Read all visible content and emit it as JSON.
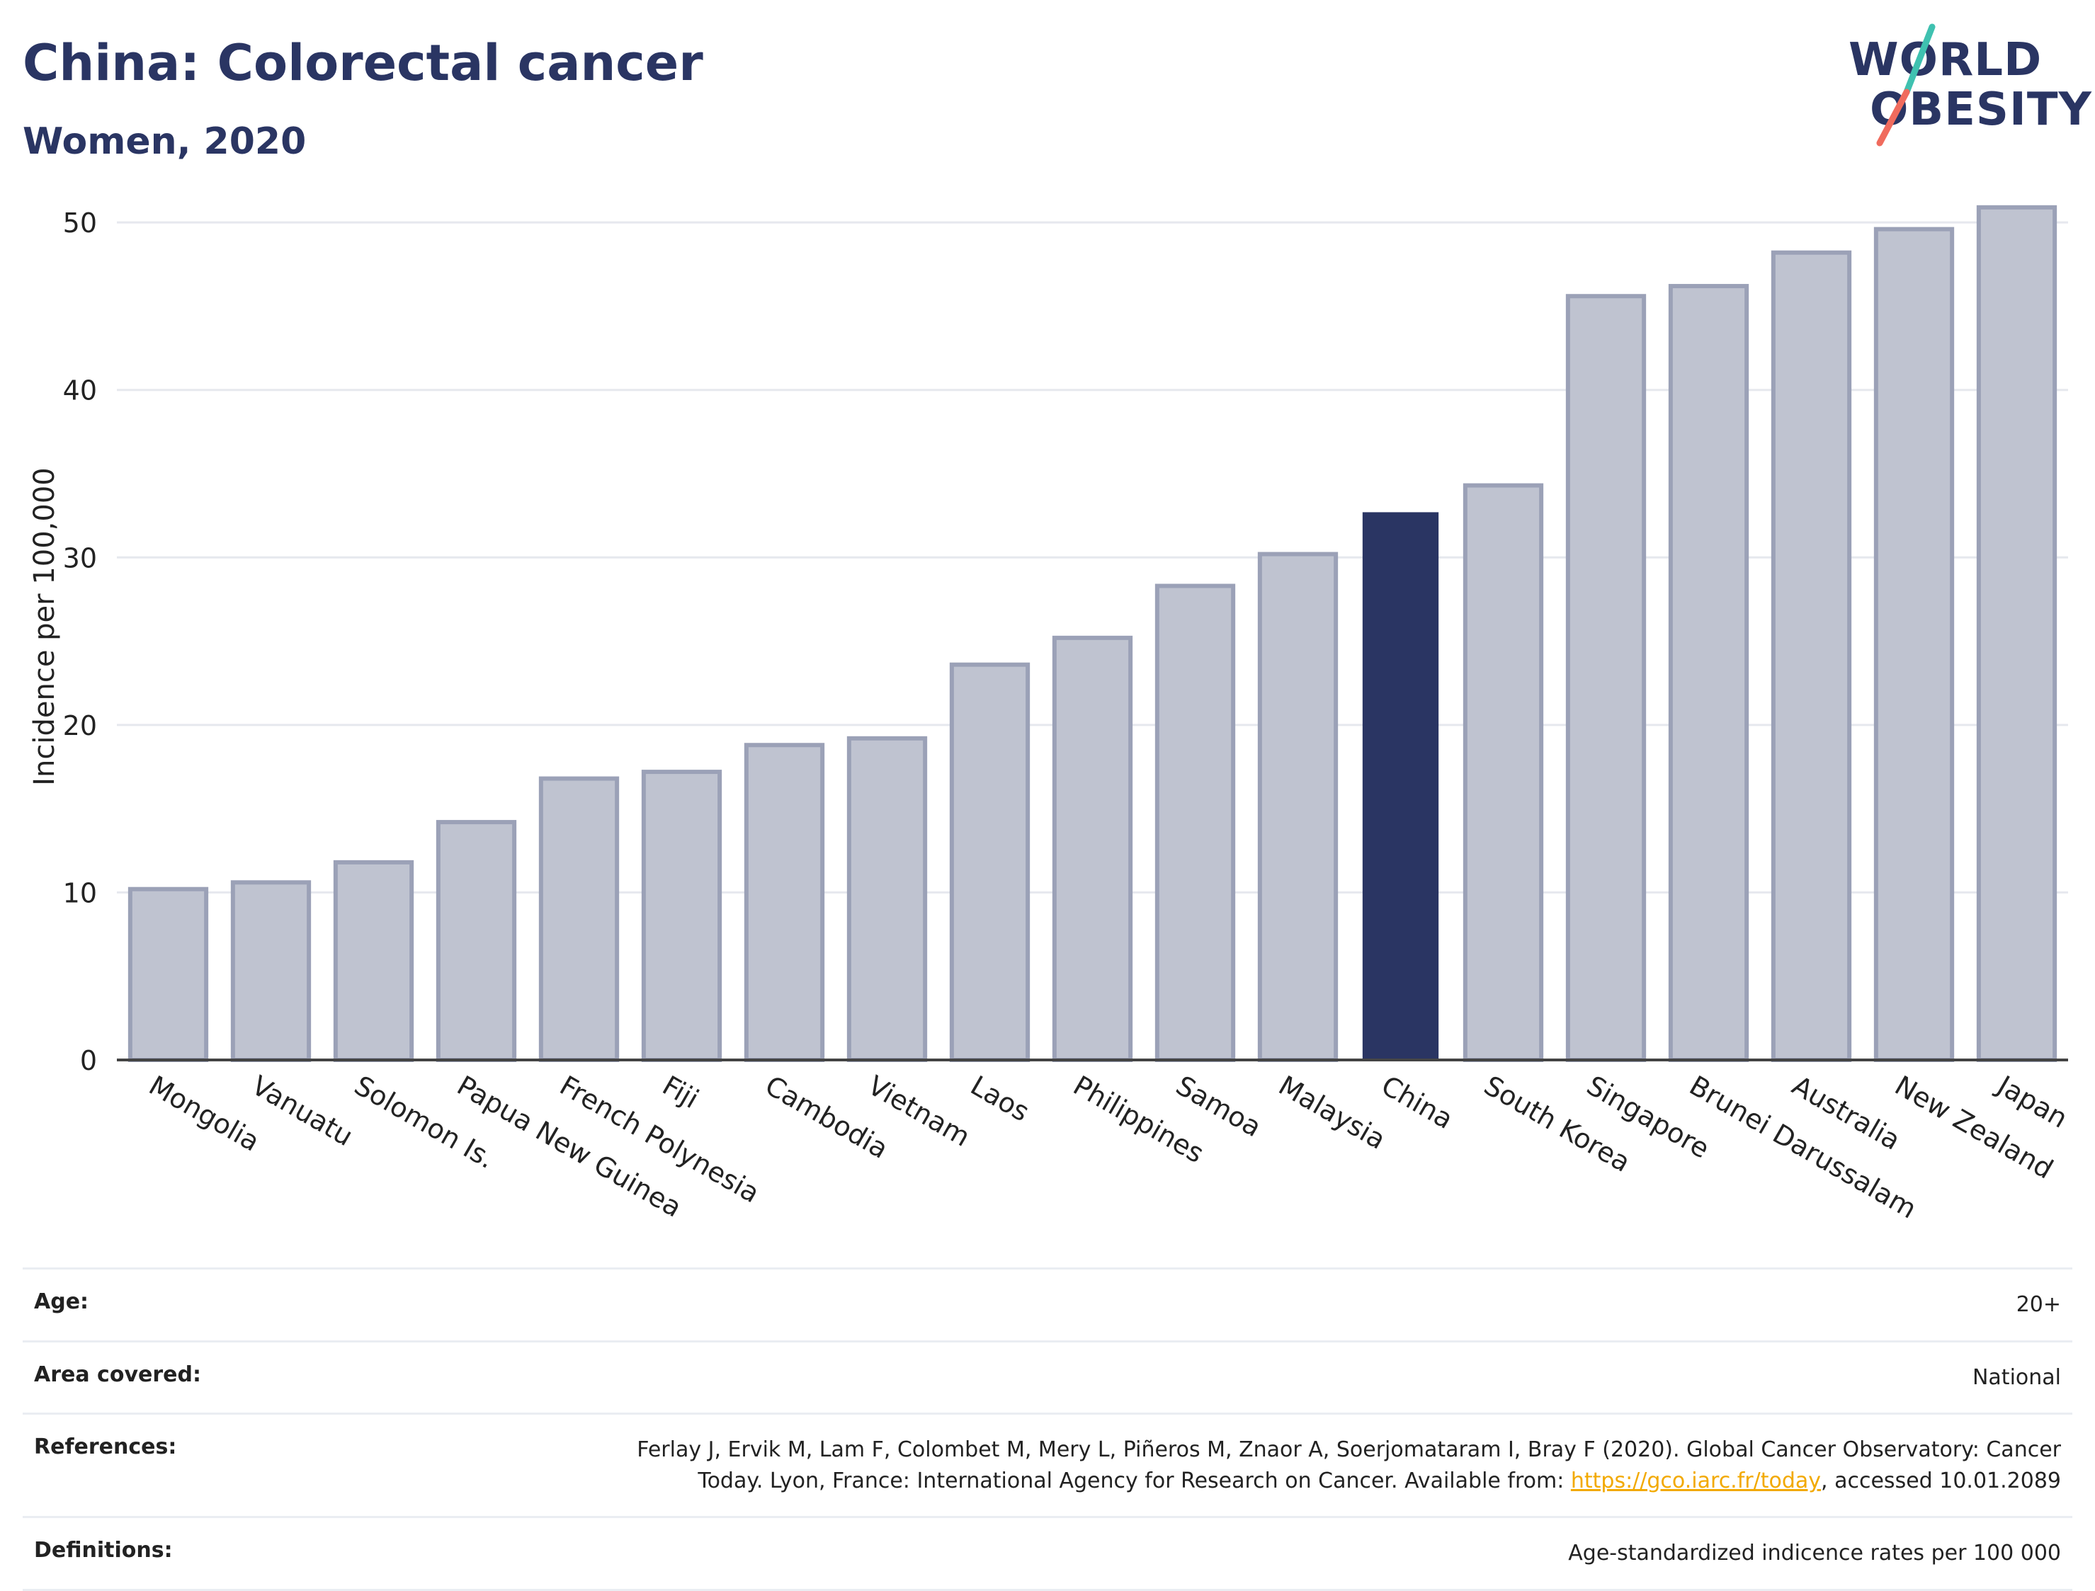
{
  "header": {
    "title": "China: Colorectal cancer",
    "subtitle": "Women, 2020"
  },
  "logo": {
    "line1": "WORLD",
    "line2": "OBESITY",
    "slash_top_color": "#3fc1b0",
    "slash_bottom_color": "#f06b5d"
  },
  "colors": {
    "bar": "#bfc3d0",
    "bar_stroke": "#9ba1b7",
    "highlight": "#2a3563",
    "grid": "#e6e8ee",
    "axis": "#444444"
  },
  "chart_data": {
    "type": "bar",
    "ylabel": "Incidence per 100,000",
    "ylim": [
      0,
      52.5
    ],
    "yticks": [
      0,
      10,
      20,
      30,
      40,
      50
    ],
    "grid": true,
    "highlight": "China",
    "categories": [
      "Mongolia",
      "Vanuatu",
      "Solomon Is.",
      "Papua New Guinea",
      "French Polynesia",
      "Fiji",
      "Cambodia",
      "Vietnam",
      "Laos",
      "Philippines",
      "Samoa",
      "Malaysia",
      "China",
      "South Korea",
      "Singapore",
      "Brunei Darussalam",
      "Australia",
      "New Zealand",
      "Japan"
    ],
    "values": [
      10.2,
      10.6,
      11.8,
      14.2,
      16.8,
      17.2,
      18.8,
      19.2,
      23.6,
      25.2,
      28.3,
      30.2,
      32.7,
      34.3,
      45.6,
      46.2,
      48.2,
      49.6,
      50.9
    ]
  },
  "meta": {
    "age_label": "Age:",
    "age_value": "20+",
    "area_label": "Area covered:",
    "area_value": "National",
    "references_label": "References:",
    "references_line1": "Ferlay J, Ervik M, Lam F, Colombet M, Mery L, Piñeros M, Znaor A, Soerjomataram I, Bray F (2020). Global Cancer Observatory: Cancer",
    "references_line2_pre": "Today. Lyon, France: International Agency for Research on Cancer. Available from: ",
    "references_link": "https://gco.iarc.fr/today",
    "references_line2_post": ", accessed 10.01.2089",
    "definitions_label": "Definitions:",
    "definitions_value": "Age-standardized indicence rates per 100 000"
  }
}
